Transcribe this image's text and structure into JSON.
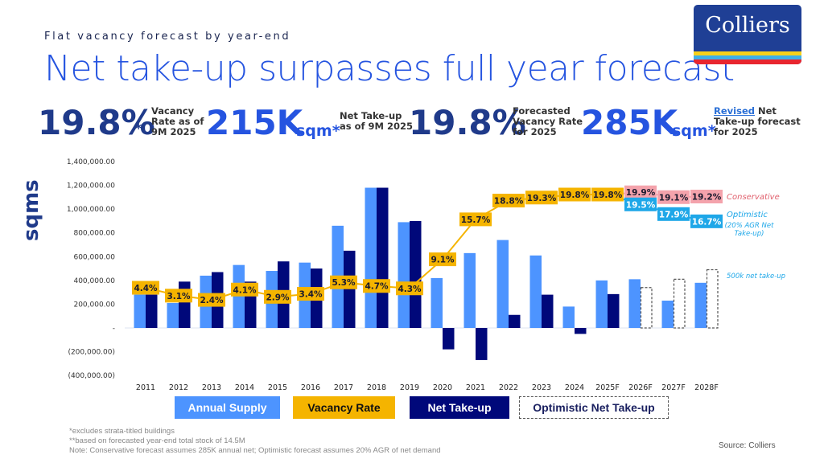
{
  "header": {
    "subtitle": "Flat vacancy forecast by year-end",
    "title": "Net take-up surpasses full year forecast",
    "logo_text": "Colliers"
  },
  "kpis": [
    {
      "value": "19.8%",
      "unit": "*",
      "label": "Vacancy\nRate as of\n9M 2025"
    },
    {
      "value": "215K",
      "unit": "sqm*",
      "label": "Net Take-up\nas of 9M 2025"
    },
    {
      "value": "19.8%",
      "unit": "",
      "label": "Forecasted\nVacancy Rate\nfor 2025"
    },
    {
      "value": "285K",
      "unit": "sqm*",
      "label_underlined": "Revised",
      "label_rest": " Net\nTake-up forecast\nfor 2025"
    }
  ],
  "chart_data": {
    "type": "bar",
    "ylabel": "sqms",
    "ylim": [
      -400000,
      1400000
    ],
    "yticks": [
      {
        "value": 1400000,
        "label": "1,400,000.00"
      },
      {
        "value": 1200000,
        "label": "1,200,000.00"
      },
      {
        "value": 1000000,
        "label": "1,000,000.00"
      },
      {
        "value": 800000,
        "label": "800,000.00"
      },
      {
        "value": 600000,
        "label": "600,000.00"
      },
      {
        "value": 400000,
        "label": "400,000.00"
      },
      {
        "value": 200000,
        "label": "200,000.00"
      },
      {
        "value": 0,
        "label": "-"
      },
      {
        "value": -200000,
        "label": "(200,000.00)"
      },
      {
        "value": -400000,
        "label": "(400,000.00)"
      }
    ],
    "categories": [
      "2011",
      "2012",
      "2013",
      "2014",
      "2015",
      "2016",
      "2017",
      "2018",
      "2019",
      "2020",
      "2021",
      "2022",
      "2023",
      "2024",
      "2025F",
      "2026F",
      "2027F",
      "2028F"
    ],
    "series": [
      {
        "name": "Annual Supply",
        "color": "#4d94ff",
        "values": [
          280000,
          210000,
          440000,
          530000,
          480000,
          550000,
          860000,
          1180000,
          890000,
          420000,
          630000,
          740000,
          610000,
          180000,
          400000,
          410000,
          230000,
          380000
        ]
      },
      {
        "name": "Net Take-up",
        "color": "#00087a",
        "values": [
          280000,
          390000,
          470000,
          390000,
          560000,
          500000,
          650000,
          1180000,
          900000,
          -180000,
          -270000,
          110000,
          280000,
          -50000,
          285000,
          null,
          null,
          null
        ]
      },
      {
        "name": "Optimistic Net Take-up",
        "color": "#ffffff",
        "border": "#555555",
        "values": [
          null,
          null,
          null,
          null,
          null,
          null,
          null,
          null,
          null,
          null,
          null,
          null,
          null,
          null,
          null,
          340000,
          410000,
          490000
        ]
      }
    ],
    "vacancy_rate": {
      "name": "Vacancy Rate",
      "color": "#f5b400",
      "values": [
        4.4,
        3.1,
        2.4,
        4.1,
        2.9,
        3.4,
        5.3,
        4.7,
        4.3,
        9.1,
        15.7,
        18.8,
        19.3,
        19.8,
        19.8,
        null,
        null,
        null
      ],
      "labels": [
        "4.4%",
        "3.1%",
        "2.4%",
        "4.1%",
        "2.9%",
        "3.4%",
        "5.3%",
        "4.7%",
        "4.3%",
        "9.1%",
        "15.7%",
        "18.8%",
        "19.3%",
        "19.8%",
        "19.8%"
      ]
    },
    "conservative_rate": {
      "name": "Conservative",
      "color": "#f4a3ac",
      "values": [
        19.9,
        19.1,
        19.2
      ],
      "labels": [
        "19.9%",
        "19.1%",
        "19.2%"
      ],
      "categories": [
        "2026F",
        "2027F",
        "2028F"
      ]
    },
    "optimistic_rate": {
      "name": "Optimistic",
      "color": "#1ea7e8",
      "values": [
        19.5,
        17.9,
        16.7
      ],
      "labels": [
        "19.5%",
        "17.9%",
        "16.7%"
      ],
      "categories": [
        "2026F",
        "2027F",
        "2028F"
      ]
    },
    "annotations": {
      "conservative": "Conservative",
      "optimistic": "Optimistic",
      "optimistic_note": "(20% AGR Net\nTake-up)",
      "takeup_note": "500k net take-up"
    },
    "legend": [
      "Annual Supply",
      "Vacancy Rate",
      "Net Take-up",
      "Optimistic Net Take-up"
    ],
    "legend_placement": "bottom"
  },
  "footnotes": [
    "*excludes strata-titled buildings",
    "**based on forecasted year-end total stock of 14.5M",
    "Note: Conservative forecast assumes 285K annual net; Optimistic forecast assumes 20% AGR of net demand"
  ],
  "source": "Source: Colliers"
}
